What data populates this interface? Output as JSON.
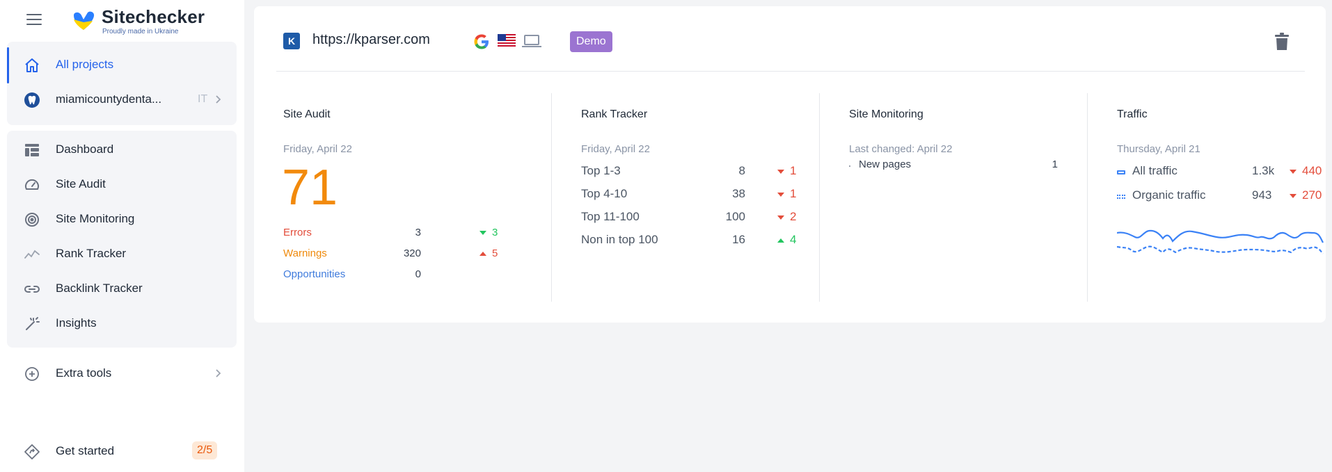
{
  "brand": {
    "name": "Sitechecker",
    "tagline": "Proudly made in Ukraine",
    "colors": {
      "blue": "#2a7fff",
      "yellow": "#ffd400"
    }
  },
  "sidebar": {
    "all_projects": "All projects",
    "project": {
      "name": "miamicountydenta...",
      "tag": "IT"
    },
    "items": [
      {
        "label": "Dashboard",
        "icon": "dashboard-icon"
      },
      {
        "label": "Site Audit",
        "icon": "speedometer-icon"
      },
      {
        "label": "Site Monitoring",
        "icon": "radar-icon"
      },
      {
        "label": "Rank Tracker",
        "icon": "trend-line-icon"
      },
      {
        "label": "Backlink Tracker",
        "icon": "link-icon"
      },
      {
        "label": "Insights",
        "icon": "magic-wand-icon"
      }
    ],
    "extra_tools": "Extra tools",
    "get_started": {
      "label": "Get started",
      "progress": "2/5"
    }
  },
  "project_card": {
    "favicon_letter": "K",
    "url": "https://kparser.com",
    "badge": "Demo",
    "site_audit": {
      "title": "Site Audit",
      "date": "Friday, April 22",
      "score": "71",
      "rows": [
        {
          "label": "Errors",
          "value": "3",
          "delta": "3"
        },
        {
          "label": "Warnings",
          "value": "320",
          "delta": "5"
        },
        {
          "label": "Opportunities",
          "value": "0",
          "delta": ""
        }
      ]
    },
    "rank_tracker": {
      "title": "Rank Tracker",
      "date": "Friday, April 22",
      "rows": [
        {
          "label": "Top 1-3",
          "value": "8",
          "delta": "1"
        },
        {
          "label": "Top 4-10",
          "value": "38",
          "delta": "1"
        },
        {
          "label": "Top 11-100",
          "value": "100",
          "delta": "2"
        },
        {
          "label": "Non in top 100",
          "value": "16",
          "delta": "4"
        }
      ]
    },
    "site_monitoring": {
      "title": "Site Monitoring",
      "date": "Last changed: April 22",
      "rows": [
        {
          "label": "New pages",
          "value": "1"
        }
      ]
    },
    "traffic": {
      "title": "Traffic",
      "date": "Thursday, April 21",
      "rows": [
        {
          "label": "All traffic",
          "value": "1.3k",
          "delta": "440"
        },
        {
          "label": "Organic traffic",
          "value": "943",
          "delta": "270"
        }
      ]
    }
  }
}
